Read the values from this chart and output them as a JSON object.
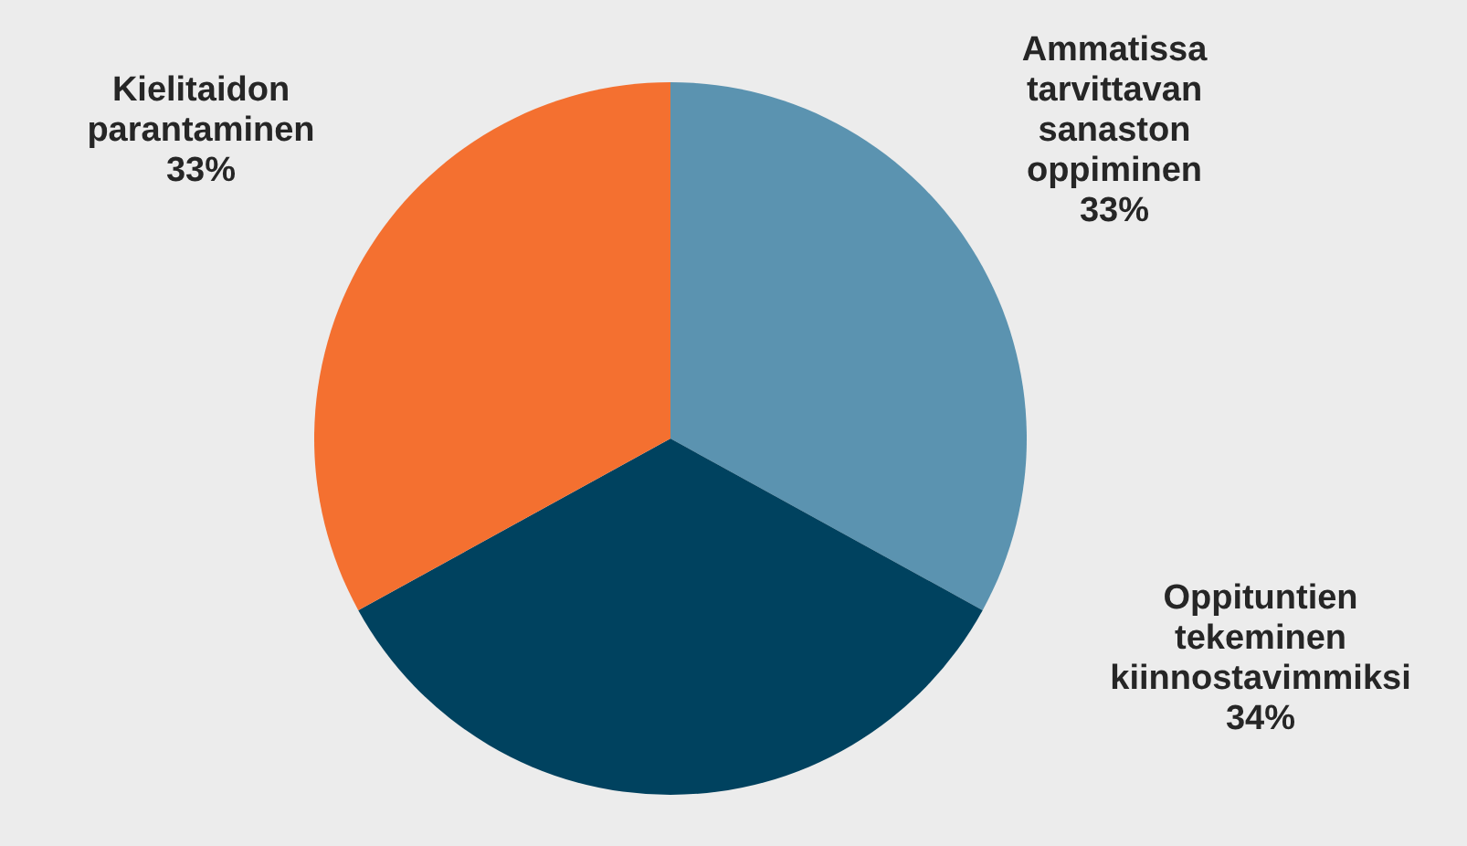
{
  "chart_data": {
    "type": "pie",
    "categories": [
      "Ammatissa tarvittavan sanaston oppiminen",
      "Oppituntien tekeminen kiinnostavimmiksi",
      "Kielitaidon parantaminen"
    ],
    "values": [
      33,
      34,
      33
    ],
    "colors": [
      "#5b93b0",
      "#00425f",
      "#f47030"
    ],
    "value_labels": [
      "33%",
      "34%",
      "33%"
    ]
  }
}
